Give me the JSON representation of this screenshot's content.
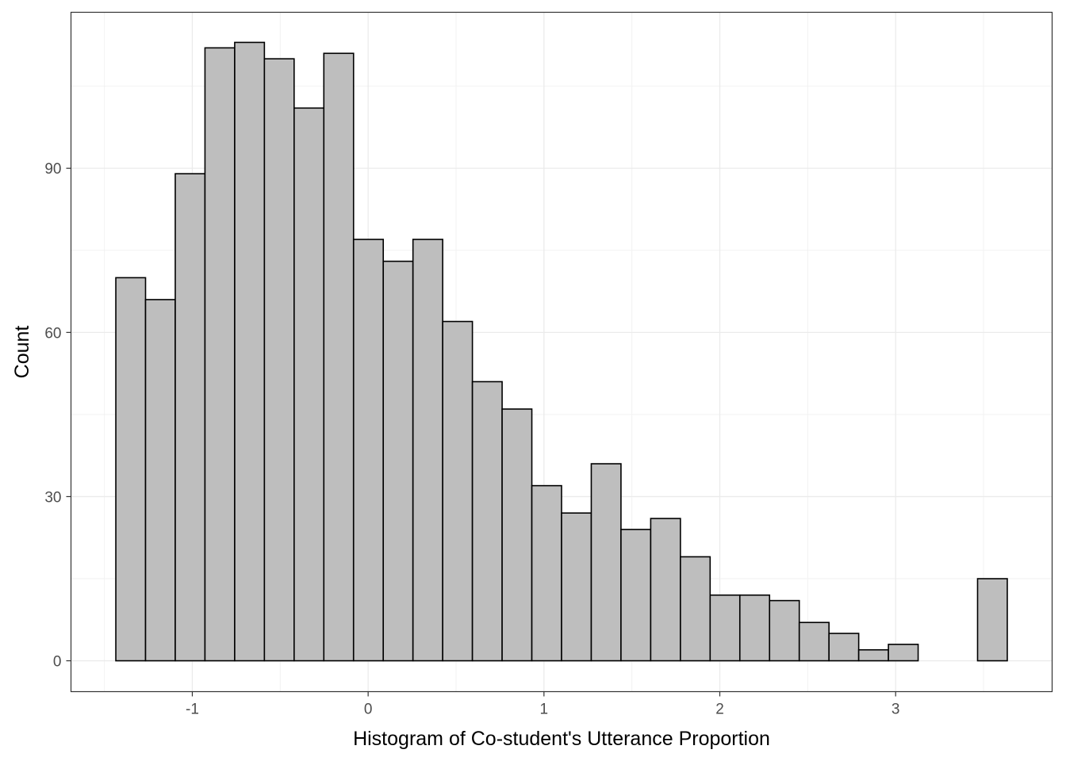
{
  "chart_data": {
    "type": "bar",
    "title": "",
    "xlabel": "Histogram of Co-student's Utterance Proportion",
    "ylabel": "Count",
    "xlim": [
      -1.69,
      3.89
    ],
    "ylim": [
      -5.64,
      118.5
    ],
    "x_ticks": [
      -1,
      0,
      1,
      2,
      3
    ],
    "x_tick_labels": [
      "-1",
      "0",
      "1",
      "2",
      "3"
    ],
    "y_ticks": [
      0,
      30,
      60,
      90
    ],
    "y_tick_labels": [
      "0",
      "30",
      "60",
      "90"
    ],
    "x_minor_ticks": [
      -1.5,
      -0.5,
      0.5,
      1.5,
      2.5,
      3.5
    ],
    "y_minor_ticks": [
      15,
      45,
      75,
      105
    ],
    "grid": true,
    "bar_fill": "#bebebe",
    "bar_stroke": "#000000",
    "bins": [
      {
        "x0": -1.435,
        "x1": -1.266,
        "count": 70
      },
      {
        "x0": -1.266,
        "x1": -1.097,
        "count": 66
      },
      {
        "x0": -1.097,
        "x1": -0.928,
        "count": 89
      },
      {
        "x0": -0.928,
        "x1": -0.759,
        "count": 112
      },
      {
        "x0": -0.759,
        "x1": -0.59,
        "count": 113
      },
      {
        "x0": -0.59,
        "x1": -0.421,
        "count": 110
      },
      {
        "x0": -0.421,
        "x1": -0.252,
        "count": 101
      },
      {
        "x0": -0.252,
        "x1": -0.083,
        "count": 111
      },
      {
        "x0": -0.083,
        "x1": 0.086,
        "count": 77
      },
      {
        "x0": 0.086,
        "x1": 0.255,
        "count": 73
      },
      {
        "x0": 0.255,
        "x1": 0.424,
        "count": 77
      },
      {
        "x0": 0.424,
        "x1": 0.593,
        "count": 62
      },
      {
        "x0": 0.593,
        "x1": 0.762,
        "count": 51
      },
      {
        "x0": 0.762,
        "x1": 0.931,
        "count": 46
      },
      {
        "x0": 0.931,
        "x1": 1.1,
        "count": 32
      },
      {
        "x0": 1.1,
        "x1": 1.269,
        "count": 27
      },
      {
        "x0": 1.269,
        "x1": 1.438,
        "count": 36
      },
      {
        "x0": 1.438,
        "x1": 1.607,
        "count": 24
      },
      {
        "x0": 1.607,
        "x1": 1.776,
        "count": 26
      },
      {
        "x0": 1.776,
        "x1": 1.945,
        "count": 19
      },
      {
        "x0": 1.945,
        "x1": 2.114,
        "count": 12
      },
      {
        "x0": 2.114,
        "x1": 2.283,
        "count": 12
      },
      {
        "x0": 2.283,
        "x1": 2.452,
        "count": 11
      },
      {
        "x0": 2.452,
        "x1": 2.621,
        "count": 7
      },
      {
        "x0": 2.621,
        "x1": 2.79,
        "count": 5
      },
      {
        "x0": 2.79,
        "x1": 2.959,
        "count": 2
      },
      {
        "x0": 2.959,
        "x1": 3.128,
        "count": 3
      },
      {
        "x0": 3.128,
        "x1": 3.297,
        "count": 0
      },
      {
        "x0": 3.297,
        "x1": 3.466,
        "count": 0
      },
      {
        "x0": 3.466,
        "x1": 3.635,
        "count": 15
      }
    ]
  }
}
